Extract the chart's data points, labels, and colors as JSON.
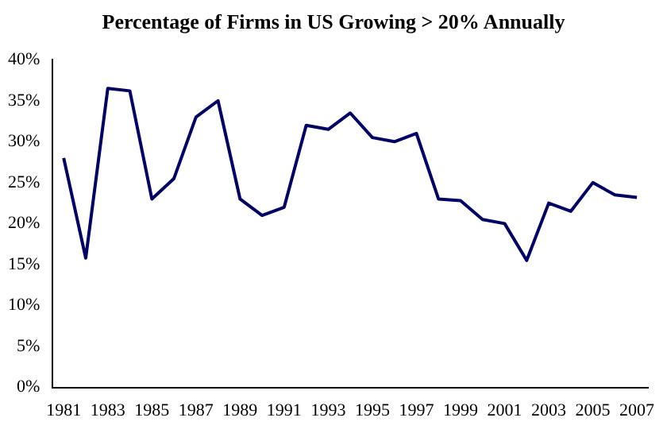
{
  "chart_data": {
    "type": "line",
    "title": "Percentage of Firms in US Growing > 20% Annually",
    "categories": [
      "1981",
      null,
      "1983",
      null,
      "1985",
      null,
      "1987",
      null,
      "1989",
      null,
      "1991",
      null,
      "1993",
      null,
      "1995",
      null,
      "1997",
      null,
      "1999",
      null,
      "2001",
      null,
      "2003",
      null,
      "2005",
      null,
      "2007"
    ],
    "series": [
      {
        "color": "#000066",
        "values": [
          28,
          15.8,
          36.5,
          36.2,
          23,
          25.5,
          33,
          35,
          23,
          21,
          22,
          32,
          31.5,
          33.5,
          30.5,
          30,
          31,
          23,
          22.8,
          20.5,
          20,
          15.5,
          22.5,
          21.5,
          25,
          23.5,
          23.2
        ]
      }
    ],
    "ylim": [
      0,
      40
    ],
    "yticks": [
      {
        "value": 0,
        "label": "0%"
      },
      {
        "value": 5,
        "label": "5%"
      },
      {
        "value": 10,
        "label": "10%"
      },
      {
        "value": 15,
        "label": "15%"
      },
      {
        "value": 20,
        "label": "20%"
      },
      {
        "value": 25,
        "label": "25%"
      },
      {
        "value": 30,
        "label": "30%"
      },
      {
        "value": 35,
        "label": "35%"
      },
      {
        "value": 40,
        "label": "40%"
      }
    ],
    "grid": false,
    "legend": false,
    "marker": "none",
    "line_style": "solid"
  }
}
